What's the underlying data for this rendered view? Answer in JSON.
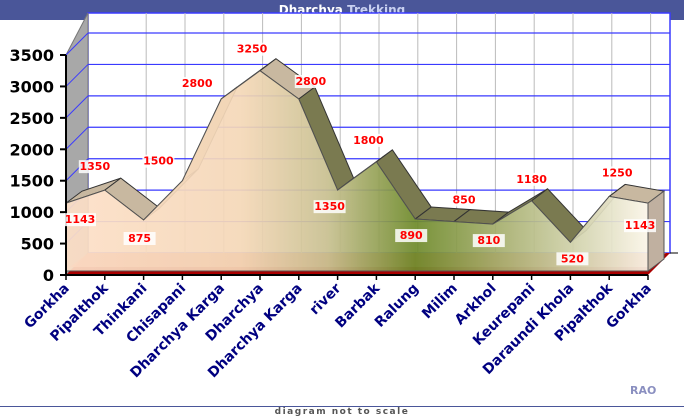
{
  "title_part1": "Dharchya",
  "title_part2": "Trekking",
  "footer": "diagram not to scale",
  "credit": "RAO",
  "chart_data": {
    "type": "area",
    "title": "Dharchya Trekking",
    "xlabel": "",
    "ylabel": "",
    "ylim": [
      0,
      3500
    ],
    "yticks": [
      "0",
      "500",
      "1000",
      "1500",
      "2000",
      "2500",
      "3000",
      "3500"
    ],
    "categories": [
      "Gorkha",
      "Pipalthok",
      "Thinkani",
      "Chisapani",
      "Dharchya Karga",
      "Dharchya",
      "Dharchya Karga",
      "river",
      "Barbak",
      "Ralung",
      "Milim",
      "Arkhol",
      "Keurepani",
      "Daraundi Khola",
      "Pipalthok",
      "Gorkha"
    ],
    "values": [
      1143,
      1350,
      875,
      1500,
      2800,
      3250,
      2800,
      1350,
      1800,
      890,
      850,
      810,
      1180,
      520,
      1250,
      1143
    ],
    "data_labels": [
      "1143",
      "1350",
      "875",
      "1500",
      "2800",
      "3250",
      "2800",
      "1350",
      "1800",
      "890",
      "850",
      "810",
      "1180",
      "520",
      "1250",
      "1143"
    ],
    "colors": {
      "grid": "#3a3aff",
      "label": "#ff0000",
      "category": "#000080",
      "floor": "#aa0000"
    }
  }
}
